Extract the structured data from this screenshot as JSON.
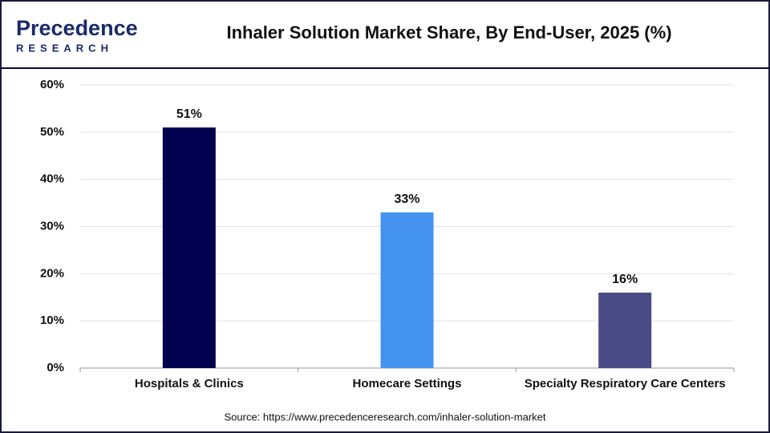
{
  "logo": {
    "name": "Precedence",
    "sub": "RESEARCH"
  },
  "chart_data": {
    "type": "bar",
    "title": "Inhaler Solution Market Share, By End-User, 2025 (%)",
    "categories": [
      "Hospitals & Clinics",
      "Homecare Settings",
      "Specialty Respiratory Care Centers"
    ],
    "values": [
      51,
      33,
      16
    ],
    "value_labels": [
      "51%",
      "33%",
      "16%"
    ],
    "colors": [
      "#00004f",
      "#4493f0",
      "#4a4a86"
    ],
    "ylim": [
      0,
      60
    ],
    "yticks": [
      {
        "value": 0,
        "label": "0%"
      },
      {
        "value": 10,
        "label": "10%"
      },
      {
        "value": 20,
        "label": "20%"
      },
      {
        "value": 30,
        "label": "30%"
      },
      {
        "value": 40,
        "label": "40%"
      },
      {
        "value": 50,
        "label": "50%"
      },
      {
        "value": 60,
        "label": "60%"
      }
    ],
    "grid": true,
    "source": "Source: https://www.precedenceresearch.com/inhaler-solution-market"
  }
}
